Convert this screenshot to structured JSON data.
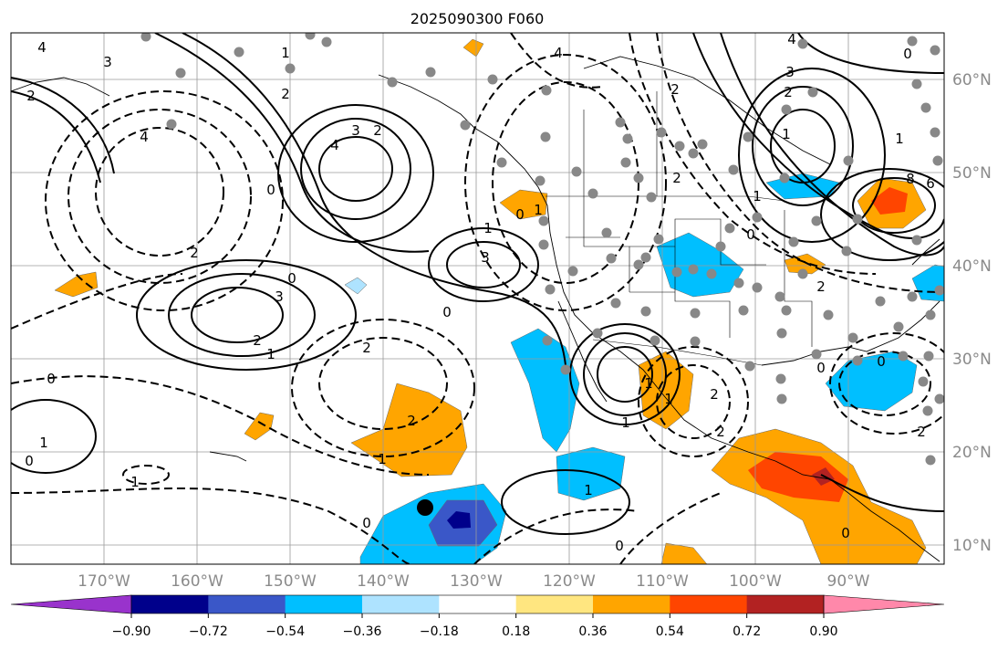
{
  "title": "2025090300 F060",
  "lat_labels": [
    "60°N",
    "50°N",
    "40°N",
    "30°N",
    "20°N",
    "10°N"
  ],
  "lon_labels": [
    "170°W",
    "160°W",
    "150°W",
    "140°W",
    "130°W",
    "120°W",
    "110°W",
    "100°W",
    "90°W"
  ],
  "colorbar": {
    "tick_labels": [
      "−0.90",
      "−0.72",
      "−0.54",
      "−0.36",
      "−0.18",
      "0.18",
      "0.36",
      "0.54",
      "0.72",
      "0.90"
    ],
    "colors": [
      "#9933cc",
      "#00008b",
      "#3a57c8",
      "#00bfff",
      "#aee3ff",
      "#ffffff",
      "#ffe680",
      "#ffa500",
      "#ff4500",
      "#b22222",
      "#ff88aa"
    ]
  },
  "contour_labels": [
    "4",
    "3",
    "2",
    "1",
    "0",
    "2",
    "4",
    "3",
    "2",
    "4",
    "1",
    "3",
    "0",
    "2",
    "3",
    "2",
    "1",
    "0",
    "0",
    "1",
    "0",
    "1",
    "1",
    "2",
    "1",
    "2",
    "1",
    "0",
    "1",
    "2",
    "1",
    "1",
    "0",
    "3",
    "2",
    "1",
    "2",
    "4",
    "4",
    "2",
    "1",
    "8",
    "6",
    "2",
    "0",
    "0",
    "0",
    "2",
    "2",
    "0",
    "1",
    "0",
    "0"
  ],
  "marker": "storm-center",
  "legend_colors": {
    "contour_solid": "#000000",
    "contour_dashed": "#000000",
    "station_dots": "#888888"
  }
}
